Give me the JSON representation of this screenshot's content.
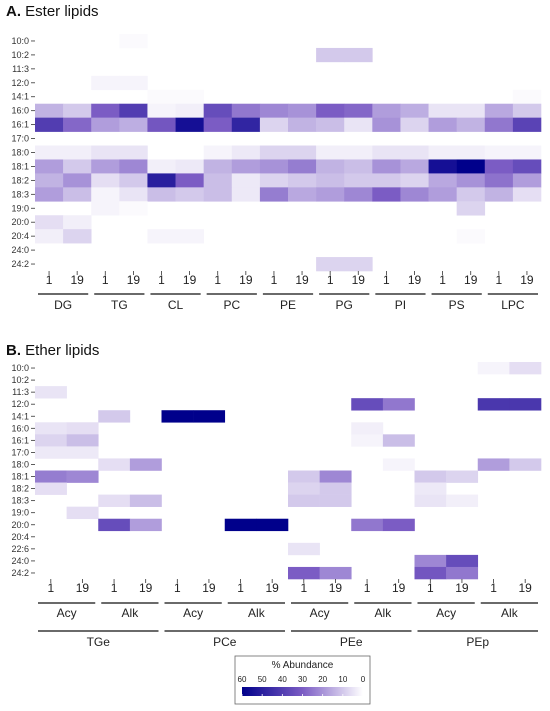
{
  "chart_data": [
    {
      "type": "heatmap",
      "panel_letter": "A.",
      "title": "Ester lipids",
      "rows": [
        "10:0",
        "10:2",
        "11:3",
        "12:0",
        "14:1",
        "16:0",
        "16:1",
        "17:0",
        "18:0",
        "18:1",
        "18:2",
        "18:3",
        "19:0",
        "20:0",
        "20:4",
        "24:0",
        "24:2"
      ],
      "columns": [
        "1",
        "19",
        "1",
        "19",
        "1",
        "19",
        "1",
        "19",
        "1",
        "19",
        "1",
        "19",
        "1",
        "19",
        "1",
        "19",
        "1",
        "19"
      ],
      "groups": [
        {
          "label": "DG",
          "start": 0,
          "span": 2
        },
        {
          "label": "TG",
          "start": 2,
          "span": 2
        },
        {
          "label": "CL",
          "start": 4,
          "span": 2
        },
        {
          "label": "PC",
          "start": 6,
          "span": 2
        },
        {
          "label": "PE",
          "start": 8,
          "span": 2
        },
        {
          "label": "PG",
          "start": 10,
          "span": 2
        },
        {
          "label": "PI",
          "start": 12,
          "span": 2
        },
        {
          "label": "PS",
          "start": 14,
          "span": 2
        },
        {
          "label": "LPC",
          "start": 16,
          "span": 2
        }
      ],
      "supergroups": [],
      "values": [
        [
          0,
          0,
          0,
          1,
          0,
          0,
          0,
          0,
          0,
          0,
          0,
          0,
          0,
          0,
          0,
          0,
          0,
          0
        ],
        [
          0,
          0,
          0,
          0,
          0,
          0,
          0,
          0,
          0,
          0,
          10,
          10,
          0,
          0,
          0,
          0,
          0,
          0
        ],
        [
          0,
          0,
          0,
          0,
          0,
          0,
          0,
          0,
          0,
          0,
          0,
          0,
          0,
          0,
          0,
          0,
          0,
          0
        ],
        [
          0,
          0,
          2,
          2,
          0,
          0,
          0,
          0,
          0,
          0,
          0,
          0,
          0,
          0,
          0,
          0,
          0,
          0
        ],
        [
          0,
          0,
          0,
          0,
          1,
          1,
          0,
          0,
          0,
          0,
          0,
          0,
          0,
          0,
          0,
          0,
          0,
          1
        ],
        [
          14,
          10,
          30,
          40,
          2,
          3,
          35,
          25,
          22,
          20,
          30,
          28,
          18,
          15,
          5,
          5,
          16,
          10
        ],
        [
          40,
          28,
          18,
          15,
          32,
          55,
          30,
          48,
          8,
          14,
          12,
          5,
          20,
          8,
          18,
          14,
          25,
          38
        ],
        [
          0,
          0,
          0,
          0,
          0,
          0,
          0,
          0,
          0,
          0,
          0,
          0,
          0,
          0,
          0,
          0,
          0,
          0
        ],
        [
          3,
          3,
          5,
          5,
          0,
          0,
          2,
          4,
          8,
          8,
          3,
          3,
          5,
          5,
          3,
          3,
          2,
          2
        ],
        [
          18,
          10,
          18,
          22,
          3,
          4,
          14,
          18,
          20,
          24,
          14,
          12,
          20,
          16,
          55,
          62,
          30,
          35
        ],
        [
          14,
          20,
          6,
          10,
          50,
          30,
          12,
          4,
          8,
          10,
          12,
          10,
          10,
          8,
          16,
          20,
          26,
          18
        ],
        [
          18,
          12,
          2,
          5,
          12,
          10,
          12,
          4,
          24,
          16,
          18,
          22,
          30,
          22,
          18,
          10,
          14,
          6
        ],
        [
          0,
          0,
          2,
          1,
          0,
          0,
          0,
          0,
          0,
          0,
          0,
          0,
          0,
          0,
          0,
          8,
          0,
          0
        ],
        [
          6,
          3,
          0,
          0,
          0,
          0,
          0,
          0,
          0,
          0,
          0,
          0,
          0,
          0,
          0,
          0,
          0,
          0
        ],
        [
          3,
          8,
          0,
          0,
          2,
          2,
          0,
          0,
          0,
          0,
          0,
          0,
          0,
          0,
          0,
          1,
          0,
          0
        ],
        [
          0,
          0,
          0,
          0,
          0,
          0,
          0,
          0,
          0,
          0,
          0,
          0,
          0,
          0,
          0,
          0,
          0,
          0
        ],
        [
          0,
          0,
          0,
          0,
          0,
          0,
          0,
          0,
          0,
          0,
          8,
          8,
          0,
          0,
          0,
          0,
          0,
          0
        ]
      ]
    },
    {
      "type": "heatmap",
      "panel_letter": "B.",
      "title": "Ether lipids",
      "rows": [
        "10:0",
        "10:2",
        "11:3",
        "12:0",
        "14:1",
        "16:0",
        "16:1",
        "17:0",
        "18:0",
        "18:1",
        "18:2",
        "18:3",
        "19:0",
        "20:0",
        "20:4",
        "22:6",
        "24:0",
        "24:2"
      ],
      "columns": [
        "1",
        "19",
        "1",
        "19",
        "1",
        "19",
        "1",
        "19",
        "1",
        "19",
        "1",
        "19",
        "1",
        "19",
        "1",
        "19"
      ],
      "groups": [
        {
          "label": "Acy",
          "start": 0,
          "span": 2
        },
        {
          "label": "Alk",
          "start": 2,
          "span": 2
        },
        {
          "label": "Acy",
          "start": 4,
          "span": 2
        },
        {
          "label": "Alk",
          "start": 6,
          "span": 2
        },
        {
          "label": "Acy",
          "start": 8,
          "span": 2
        },
        {
          "label": "Alk",
          "start": 10,
          "span": 2
        },
        {
          "label": "Acy",
          "start": 12,
          "span": 2
        },
        {
          "label": "Alk",
          "start": 14,
          "span": 2
        }
      ],
      "supergroups": [
        {
          "label": "TGe",
          "start": 0,
          "span": 4
        },
        {
          "label": "PCe",
          "start": 4,
          "span": 4
        },
        {
          "label": "PEe",
          "start": 8,
          "span": 4
        },
        {
          "label": "PEp",
          "start": 12,
          "span": 4
        }
      ],
      "values": [
        [
          0,
          0,
          0,
          0,
          0,
          0,
          0,
          0,
          0,
          0,
          0,
          0,
          0,
          0,
          2,
          6
        ],
        [
          0,
          0,
          0,
          0,
          0,
          0,
          0,
          0,
          0,
          0,
          0,
          0,
          0,
          0,
          0,
          0
        ],
        [
          5,
          0,
          0,
          0,
          0,
          0,
          0,
          0,
          0,
          0,
          0,
          0,
          0,
          0,
          0,
          0
        ],
        [
          0,
          0,
          0,
          0,
          0,
          0,
          0,
          0,
          0,
          0,
          35,
          25,
          0,
          0,
          42,
          42
        ],
        [
          0,
          0,
          10,
          0,
          62,
          62,
          0,
          0,
          0,
          0,
          0,
          0,
          0,
          0,
          0,
          0
        ],
        [
          5,
          6,
          0,
          0,
          0,
          0,
          0,
          0,
          0,
          0,
          3,
          0,
          0,
          0,
          0,
          0
        ],
        [
          8,
          12,
          0,
          0,
          0,
          0,
          0,
          0,
          0,
          0,
          2,
          12,
          0,
          0,
          0,
          0
        ],
        [
          4,
          4,
          0,
          0,
          0,
          0,
          0,
          0,
          0,
          0,
          0,
          0,
          0,
          0,
          0,
          0
        ],
        [
          0,
          0,
          6,
          18,
          0,
          0,
          0,
          0,
          0,
          0,
          0,
          2,
          0,
          0,
          18,
          10
        ],
        [
          24,
          22,
          0,
          0,
          0,
          0,
          0,
          0,
          10,
          22,
          0,
          0,
          10,
          8,
          0,
          0
        ],
        [
          6,
          0,
          0,
          0,
          0,
          0,
          0,
          0,
          8,
          10,
          0,
          0,
          4,
          0,
          0,
          0
        ],
        [
          0,
          0,
          6,
          12,
          0,
          0,
          0,
          0,
          10,
          10,
          0,
          0,
          5,
          3,
          0,
          0
        ],
        [
          0,
          6,
          0,
          0,
          0,
          0,
          0,
          0,
          0,
          0,
          0,
          0,
          0,
          0,
          0,
          0
        ],
        [
          0,
          0,
          35,
          18,
          0,
          0,
          62,
          62,
          0,
          0,
          25,
          30,
          0,
          0,
          0,
          0
        ],
        [
          0,
          0,
          0,
          0,
          0,
          0,
          0,
          0,
          0,
          0,
          0,
          0,
          0,
          0,
          0,
          0
        ],
        [
          0,
          0,
          0,
          0,
          0,
          0,
          0,
          0,
          5,
          0,
          0,
          0,
          0,
          0,
          0,
          0
        ],
        [
          0,
          0,
          0,
          0,
          0,
          0,
          0,
          0,
          0,
          0,
          0,
          0,
          22,
          35,
          0,
          0
        ],
        [
          0,
          0,
          0,
          0,
          0,
          0,
          0,
          0,
          30,
          22,
          0,
          0,
          32,
          25,
          0,
          0
        ]
      ]
    }
  ],
  "legend": {
    "title": "% Abundance",
    "ticks": [
      60,
      50,
      40,
      30,
      20,
      10,
      0
    ],
    "color_high": "#00008b",
    "color_mid": "#7b5cc4",
    "color_low": "#ffffff"
  }
}
